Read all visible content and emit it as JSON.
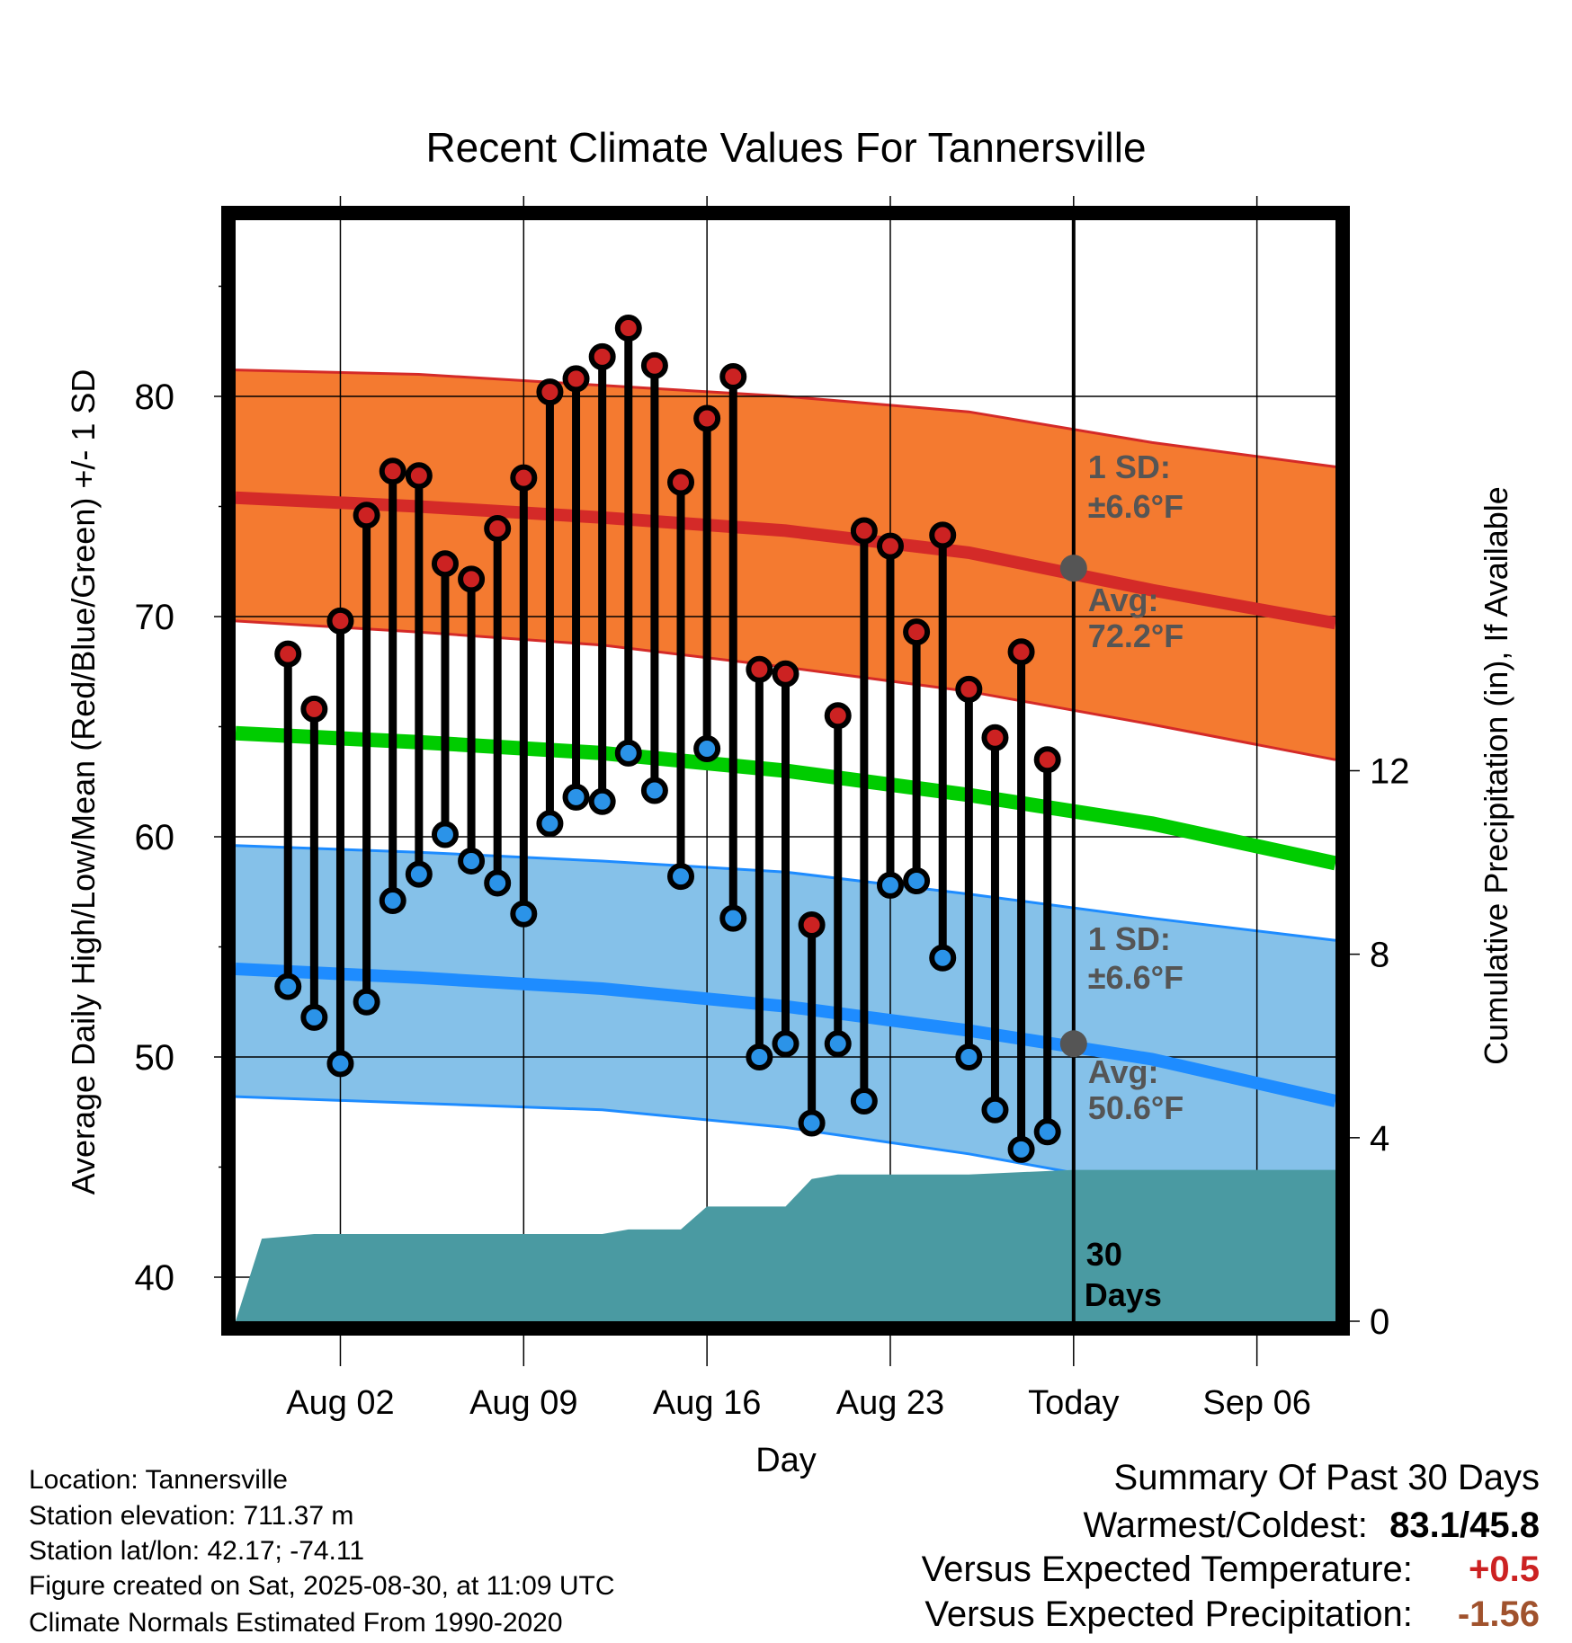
{
  "chart_data": {
    "type": "line",
    "title": "Recent Climate Values For Tannersville",
    "xlabel": "Day",
    "ylabel_left": "Average Daily High/Low/Mean (Red/Blue/Green) +/- 1 SD",
    "ylabel_right": "Cumulative Precipitation (in), If Available",
    "x_tick_labels": [
      "Aug 02",
      "Aug 09",
      "Aug 16",
      "Aug 23",
      "Today",
      "Sep 06"
    ],
    "x_tick_dates": [
      "2025-08-02",
      "2025-08-09",
      "2025-08-16",
      "2025-08-23",
      "2025-08-30",
      "2025-09-06"
    ],
    "xlim": [
      "2025-07-29",
      "2025-09-09"
    ],
    "ylim_left": [
      38,
      88
    ],
    "left_ticks": [
      40,
      50,
      60,
      70,
      80
    ],
    "ylim_right": [
      0,
      24
    ],
    "right_ticks": [
      0,
      4,
      8,
      12
    ],
    "grid": true,
    "daily_dates": [
      "2025-07-31",
      "2025-08-01",
      "2025-08-02",
      "2025-08-03",
      "2025-08-04",
      "2025-08-05",
      "2025-08-06",
      "2025-08-07",
      "2025-08-08",
      "2025-08-09",
      "2025-08-10",
      "2025-08-11",
      "2025-08-12",
      "2025-08-13",
      "2025-08-14",
      "2025-08-15",
      "2025-08-16",
      "2025-08-17",
      "2025-08-18",
      "2025-08-19",
      "2025-08-20",
      "2025-08-21",
      "2025-08-22",
      "2025-08-23",
      "2025-08-24",
      "2025-08-25",
      "2025-08-26",
      "2025-08-27",
      "2025-08-28",
      "2025-08-29"
    ],
    "daily_high": [
      68.3,
      65.8,
      69.8,
      74.6,
      76.6,
      76.4,
      72.4,
      71.7,
      74.0,
      76.3,
      80.2,
      80.8,
      81.8,
      83.1,
      81.4,
      76.1,
      79.0,
      80.9,
      67.6,
      67.4,
      56.0,
      65.5,
      73.9,
      73.2,
      69.3,
      73.7,
      66.7,
      64.5,
      68.4,
      63.5
    ],
    "daily_low": [
      53.2,
      51.8,
      49.7,
      52.5,
      57.1,
      58.3,
      60.1,
      58.9,
      57.9,
      56.5,
      60.6,
      61.8,
      61.6,
      63.8,
      62.1,
      58.2,
      64.0,
      56.3,
      50.0,
      50.6,
      47.0,
      50.6,
      48.0,
      57.8,
      58.0,
      54.5,
      50.0,
      47.6,
      45.8,
      46.6
    ],
    "normals_dates": [
      "2025-07-29",
      "2025-08-05",
      "2025-08-12",
      "2025-08-19",
      "2025-08-26",
      "2025-09-02",
      "2025-09-09"
    ],
    "normal_high": [
      75.4,
      75.0,
      74.5,
      73.9,
      72.9,
      71.2,
      69.7
    ],
    "normal_high_upper": [
      81.2,
      81.0,
      80.5,
      80.0,
      79.3,
      77.9,
      76.8
    ],
    "normal_high_lower": [
      69.8,
      69.3,
      68.7,
      67.7,
      66.6,
      65.1,
      63.5
    ],
    "normal_mean": [
      64.7,
      64.3,
      63.8,
      63.0,
      61.9,
      60.6,
      58.8
    ],
    "normal_low": [
      54.0,
      53.6,
      53.1,
      52.3,
      51.2,
      49.9,
      48.0
    ],
    "normal_low_upper": [
      59.6,
      59.3,
      58.9,
      58.4,
      57.4,
      56.3,
      55.3
    ],
    "normal_low_lower": [
      48.2,
      47.9,
      47.6,
      46.8,
      45.6,
      44.1,
      42.6
    ],
    "precip_dates": [
      "2025-07-29",
      "2025-07-30",
      "2025-08-01",
      "2025-08-03",
      "2025-08-09",
      "2025-08-12",
      "2025-08-13",
      "2025-08-15",
      "2025-08-16",
      "2025-08-19",
      "2025-08-20",
      "2025-08-21",
      "2025-08-23",
      "2025-08-26",
      "2025-08-30",
      "2025-09-09"
    ],
    "precip_cumulative": [
      0.0,
      1.8,
      1.9,
      1.9,
      1.9,
      1.9,
      2.0,
      2.0,
      2.5,
      2.5,
      3.1,
      3.2,
      3.2,
      3.2,
      3.3,
      3.3
    ],
    "annotations": {
      "high_sd_label": "1 SD:",
      "high_sd_value": "±6.6°F",
      "high_avg_label": "Avg:",
      "high_avg_value": "72.2°F",
      "low_sd_label": "1 SD:",
      "low_sd_value": "±6.6°F",
      "low_avg_label": "Avg:",
      "low_avg_value": "50.6°F",
      "today_high": 72.2,
      "today_low": 50.6,
      "days_label_1": "30",
      "days_label_2": "Days"
    },
    "colors": {
      "high_band": "#f47a30",
      "high_line": "#d42a28",
      "low_band": "#85c1e9",
      "low_line": "#1e8cff",
      "mean_line": "#00cc00",
      "precip": "#4a9aa2",
      "high_dot": "#cc2222",
      "low_dot": "#2b93e8",
      "annotation_text": "#555555"
    }
  },
  "footer": {
    "location": "Location: Tannersville",
    "elevation": "Station elevation: 711.37 m",
    "latlon": "Station lat/lon: 42.17; -74.11",
    "created": "Figure created on Sat, 2025-08-30, at 11:09 UTC",
    "normals": "Climate Normals Estimated From 1990-2020"
  },
  "summary": {
    "title": "Summary Of Past 30 Days",
    "warmest_label": "Warmest/Coldest:",
    "warmest_value": "83.1/45.8",
    "temp_label": "Versus Expected Temperature:",
    "temp_value": "+0.5",
    "temp_color": "#cc2222",
    "precip_label": "Versus Expected Precipitation:",
    "precip_value": "-1.56",
    "precip_color": "#a0522d"
  }
}
